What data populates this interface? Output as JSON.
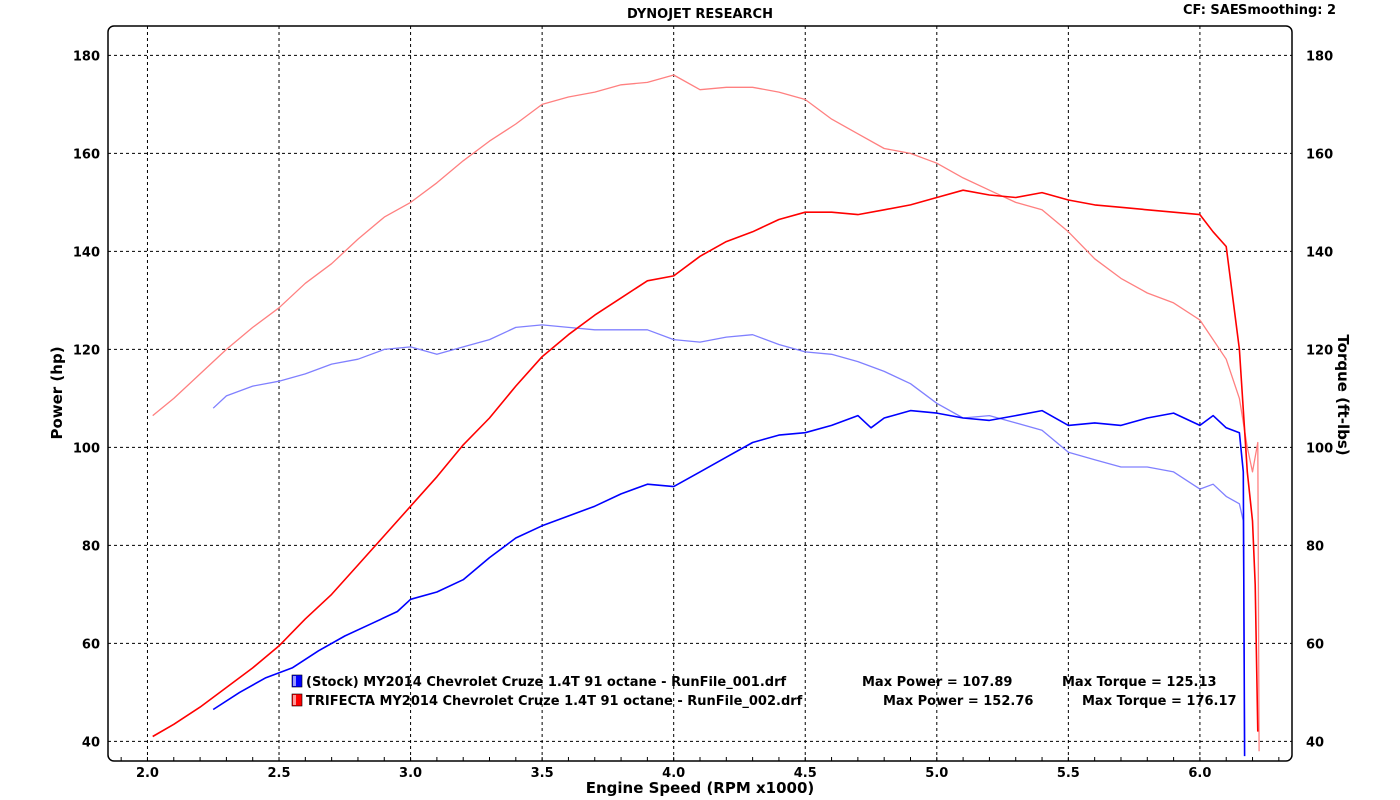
{
  "header": {
    "title": "DYNOJET RESEARCH",
    "correction": "CF: SAE",
    "smoothing": "Smoothing: 2"
  },
  "chart_data": {
    "type": "line",
    "xlabel": "Engine Speed (RPM x1000)",
    "ylabel_left": "Power (hp)",
    "ylabel_right": "Torque (ft-lbs)",
    "xlim": [
      1.85,
      6.35
    ],
    "ylim": [
      36,
      186
    ],
    "x_ticks": [
      2.0,
      2.5,
      3.0,
      3.5,
      4.0,
      4.5,
      5.0,
      5.5,
      6.0
    ],
    "x_tick_labels": [
      "2.0",
      "2.5",
      "3.0",
      "3.5",
      "4.0",
      "4.5",
      "5.0",
      "5.5",
      "6.0"
    ],
    "y_ticks": [
      40,
      60,
      80,
      100,
      120,
      140,
      160,
      180
    ],
    "y_tick_labels": [
      "40",
      "60",
      "80",
      "100",
      "120",
      "140",
      "160",
      "180"
    ],
    "grid": true,
    "legend_position": "bottom-left",
    "series": [
      {
        "name": "(Stock) MY2014 Chevrolet Cruze 1.4T 91 octane - RunFile_001.drf",
        "max_power": "Max Power = 107.89",
        "max_torque": "Max Torque = 125.13",
        "power": {
          "color": "#0000ff",
          "x": [
            2.25,
            2.35,
            2.45,
            2.55,
            2.65,
            2.75,
            2.85,
            2.95,
            3.0,
            3.1,
            3.2,
            3.3,
            3.4,
            3.5,
            3.6,
            3.7,
            3.8,
            3.9,
            4.0,
            4.1,
            4.2,
            4.3,
            4.4,
            4.5,
            4.6,
            4.7,
            4.75,
            4.8,
            4.9,
            5.0,
            5.1,
            5.2,
            5.3,
            5.4,
            5.5,
            5.6,
            5.7,
            5.8,
            5.9,
            6.0,
            6.05,
            6.1,
            6.15,
            6.165,
            6.17
          ],
          "y": [
            46.5,
            50,
            53,
            55,
            58.5,
            61.5,
            64,
            66.5,
            69,
            70.5,
            73,
            77.5,
            81.5,
            84,
            86,
            88,
            90.5,
            92.5,
            92,
            95,
            98,
            101,
            102.5,
            103,
            104.5,
            106.5,
            104,
            106,
            107.5,
            107,
            106,
            105.5,
            106.5,
            107.5,
            104.5,
            105,
            104.5,
            106,
            107,
            104.5,
            106.5,
            104,
            103,
            95,
            37
          ]
        },
        "torque": {
          "color": "#8080ff",
          "x": [
            2.25,
            2.3,
            2.4,
            2.5,
            2.6,
            2.7,
            2.8,
            2.9,
            3.0,
            3.1,
            3.2,
            3.3,
            3.4,
            3.5,
            3.6,
            3.7,
            3.8,
            3.9,
            4.0,
            4.1,
            4.2,
            4.3,
            4.4,
            4.5,
            4.6,
            4.7,
            4.8,
            4.9,
            5.0,
            5.1,
            5.2,
            5.3,
            5.4,
            5.5,
            5.6,
            5.7,
            5.8,
            5.9,
            6.0,
            6.05,
            6.1,
            6.15,
            6.165,
            6.17
          ],
          "y": [
            108,
            110.5,
            112.5,
            113.5,
            115,
            117,
            118,
            120,
            120.5,
            119,
            120.5,
            122,
            124.5,
            125,
            124.5,
            124,
            124,
            124,
            122,
            121.5,
            122.5,
            123,
            121,
            119.5,
            119,
            117.5,
            115.5,
            113,
            109,
            106,
            106.5,
            105,
            103.5,
            99,
            97.5,
            96,
            96,
            95,
            91.5,
            92.5,
            90,
            88.5,
            85,
            40
          ]
        }
      },
      {
        "name": "TRIFECTA MY2014 Chevrolet Cruze 1.4T 91 octane - RunFile_002.drf",
        "max_power": "Max Power = 152.76",
        "max_torque": "Max Torque = 176.17",
        "power": {
          "color": "#ff0000",
          "x": [
            2.02,
            2.1,
            2.2,
            2.3,
            2.4,
            2.5,
            2.6,
            2.7,
            2.8,
            2.9,
            3.0,
            3.1,
            3.2,
            3.3,
            3.4,
            3.5,
            3.6,
            3.7,
            3.8,
            3.9,
            4.0,
            4.1,
            4.2,
            4.3,
            4.4,
            4.5,
            4.6,
            4.7,
            4.8,
            4.9,
            5.0,
            5.1,
            5.2,
            5.3,
            5.4,
            5.5,
            5.6,
            5.7,
            5.8,
            5.9,
            6.0,
            6.05,
            6.1,
            6.15,
            6.18,
            6.2,
            6.21,
            6.22
          ],
          "y": [
            41,
            43.5,
            47,
            51,
            55,
            59.5,
            65,
            70,
            76,
            82,
            88,
            94,
            100.5,
            106,
            112.5,
            118.5,
            123,
            127,
            130.5,
            134,
            135,
            139,
            142,
            144,
            146.5,
            148,
            148,
            147.5,
            148.5,
            149.5,
            151,
            152.5,
            151.5,
            151,
            152,
            150.5,
            149.5,
            149,
            148.5,
            148,
            147.5,
            144,
            141,
            120,
            95,
            85,
            72,
            42
          ]
        },
        "torque": {
          "color": "#ff8080",
          "x": [
            2.02,
            2.1,
            2.2,
            2.3,
            2.4,
            2.5,
            2.6,
            2.7,
            2.8,
            2.9,
            3.0,
            3.1,
            3.2,
            3.3,
            3.4,
            3.5,
            3.6,
            3.7,
            3.8,
            3.9,
            4.0,
            4.1,
            4.2,
            4.3,
            4.4,
            4.5,
            4.6,
            4.7,
            4.8,
            4.9,
            5.0,
            5.1,
            5.2,
            5.3,
            5.4,
            5.5,
            5.6,
            5.7,
            5.8,
            5.9,
            6.0,
            6.05,
            6.1,
            6.15,
            6.18,
            6.2,
            6.22,
            6.225
          ],
          "y": [
            106.5,
            110,
            115,
            120,
            124.5,
            128.5,
            133.5,
            137.5,
            142.5,
            147,
            150,
            154,
            158.5,
            162.5,
            166,
            170,
            171.5,
            172.5,
            174,
            174.5,
            176,
            173,
            173.5,
            173.5,
            172.5,
            171,
            167,
            164,
            161,
            160,
            158,
            155,
            152.5,
            150,
            148.5,
            144,
            138.5,
            134.5,
            131.5,
            129.5,
            126,
            122,
            118,
            110,
            100,
            95,
            101,
            38
          ]
        }
      }
    ]
  }
}
